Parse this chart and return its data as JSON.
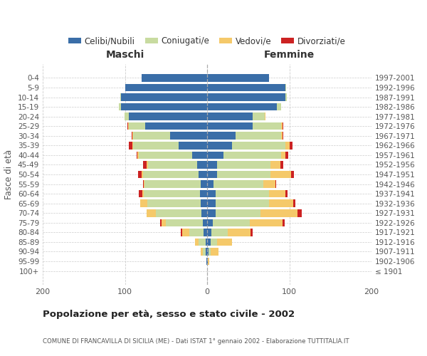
{
  "age_groups": [
    "100+",
    "95-99",
    "90-94",
    "85-89",
    "80-84",
    "75-79",
    "70-74",
    "65-69",
    "60-64",
    "55-59",
    "50-54",
    "45-49",
    "40-44",
    "35-39",
    "30-34",
    "25-29",
    "20-24",
    "15-19",
    "10-14",
    "5-9",
    "0-4"
  ],
  "birth_years": [
    "≤ 1901",
    "1902-1906",
    "1907-1911",
    "1912-1916",
    "1917-1921",
    "1922-1926",
    "1927-1931",
    "1932-1936",
    "1937-1941",
    "1942-1946",
    "1947-1951",
    "1952-1956",
    "1957-1961",
    "1962-1966",
    "1967-1971",
    "1972-1976",
    "1977-1981",
    "1982-1986",
    "1987-1991",
    "1992-1996",
    "1997-2001"
  ],
  "maschi": {
    "celibe": [
      0,
      1,
      2,
      2,
      4,
      5,
      7,
      8,
      9,
      8,
      10,
      12,
      18,
      35,
      45,
      75,
      95,
      105,
      105,
      100,
      80
    ],
    "coniugato": [
      0,
      0,
      3,
      8,
      18,
      45,
      55,
      65,
      68,
      68,
      68,
      60,
      65,
      55,
      45,
      20,
      5,
      2,
      1,
      0,
      0
    ],
    "vedovo": [
      0,
      0,
      3,
      5,
      8,
      5,
      12,
      8,
      2,
      1,
      2,
      2,
      2,
      1,
      1,
      1,
      0,
      0,
      0,
      0,
      0
    ],
    "divorziato": [
      0,
      0,
      0,
      0,
      2,
      2,
      0,
      0,
      4,
      1,
      4,
      4,
      1,
      4,
      1,
      1,
      0,
      0,
      0,
      0,
      0
    ]
  },
  "femmine": {
    "nubile": [
      0,
      1,
      2,
      4,
      5,
      7,
      10,
      10,
      10,
      8,
      12,
      12,
      20,
      30,
      35,
      55,
      55,
      85,
      95,
      95,
      75
    ],
    "coniugata": [
      0,
      0,
      2,
      8,
      20,
      45,
      55,
      65,
      65,
      60,
      65,
      65,
      70,
      65,
      55,
      35,
      15,
      5,
      2,
      1,
      0
    ],
    "vedova": [
      0,
      2,
      10,
      18,
      28,
      40,
      45,
      30,
      20,
      15,
      25,
      12,
      5,
      5,
      2,
      2,
      1,
      0,
      0,
      0,
      0
    ],
    "divorziata": [
      0,
      0,
      0,
      0,
      2,
      2,
      5,
      2,
      3,
      1,
      4,
      4,
      4,
      4,
      1,
      1,
      0,
      0,
      0,
      0,
      0
    ]
  },
  "colors": {
    "celibe_nubile": "#3a6ea8",
    "coniugato": "#c8dba0",
    "vedovo": "#f5c96a",
    "divorziato": "#cc2222"
  },
  "xlim": 200,
  "title": "Popolazione per età, sesso e stato civile - 2002",
  "subtitle": "COMUNE DI FRANCAVILLA DI SICILIA (ME) - Dati ISTAT 1° gennaio 2002 - Elaborazione TUTTITALIA.IT",
  "ylabel_left": "Fasce di età",
  "xlabel_left": "Maschi",
  "xlabel_right": "Femmine"
}
